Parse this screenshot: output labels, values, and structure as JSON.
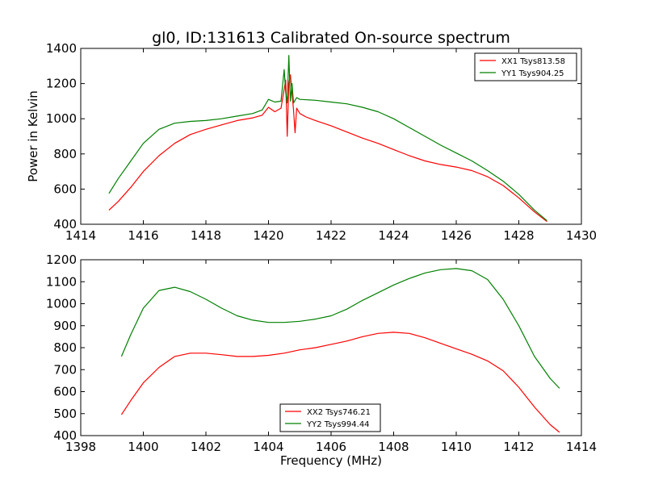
{
  "figure": {
    "title": "gl0, ID:131613 Calibrated On-source spectrum"
  },
  "chart_data": [
    {
      "type": "line",
      "title": "gl0, ID:131613 Calibrated On-source spectrum",
      "xlabel": "",
      "ylabel": "Power in Kelvin",
      "xlim": [
        1414,
        1430
      ],
      "ylim": [
        400,
        1400
      ],
      "xticks": [
        1414,
        1416,
        1418,
        1420,
        1422,
        1424,
        1426,
        1428,
        1430
      ],
      "yticks": [
        400,
        600,
        800,
        1000,
        1200,
        1400
      ],
      "grid": false,
      "legend": "top-right",
      "series": [
        {
          "name": "XX1 Tsys813.58",
          "color": "#ff0000",
          "x": [
            1414.9,
            1415.2,
            1415.6,
            1416.0,
            1416.5,
            1417.0,
            1417.5,
            1418.0,
            1418.5,
            1419.0,
            1419.5,
            1419.8,
            1420.0,
            1420.2,
            1420.4,
            1420.55,
            1420.6,
            1420.65,
            1420.7,
            1420.8,
            1420.85,
            1420.9,
            1421.0,
            1421.2,
            1421.5,
            1422.0,
            1422.5,
            1423.0,
            1423.5,
            1424.0,
            1424.5,
            1425.0,
            1425.5,
            1426.0,
            1426.5,
            1427.0,
            1427.5,
            1428.0,
            1428.5,
            1428.9
          ],
          "y": [
            480,
            530,
            610,
            700,
            790,
            860,
            910,
            940,
            965,
            990,
            1005,
            1020,
            1065,
            1040,
            1060,
            1220,
            900,
            1200,
            1250,
            1050,
            920,
            1060,
            1030,
            1010,
            990,
            960,
            925,
            890,
            860,
            825,
            790,
            760,
            740,
            725,
            705,
            670,
            620,
            550,
            470,
            415
          ]
        },
        {
          "name": "YY1 Tsys904.25",
          "color": "#008000",
          "x": [
            1414.9,
            1415.2,
            1415.6,
            1416.0,
            1416.5,
            1417.0,
            1417.5,
            1418.0,
            1418.5,
            1419.0,
            1419.5,
            1419.8,
            1420.0,
            1420.2,
            1420.4,
            1420.5,
            1420.55,
            1420.6,
            1420.65,
            1420.7,
            1420.75,
            1420.8,
            1420.9,
            1421.0,
            1421.5,
            1422.0,
            1422.5,
            1423.0,
            1423.5,
            1424.0,
            1424.5,
            1425.0,
            1425.5,
            1426.0,
            1426.5,
            1427.0,
            1427.5,
            1428.0,
            1428.5,
            1428.9
          ],
          "y": [
            575,
            660,
            760,
            860,
            940,
            975,
            985,
            990,
            1000,
            1015,
            1030,
            1050,
            1110,
            1095,
            1100,
            1280,
            1150,
            1090,
            1360,
            1100,
            1200,
            1090,
            1120,
            1110,
            1105,
            1095,
            1085,
            1065,
            1040,
            1000,
            950,
            900,
            850,
            805,
            760,
            705,
            645,
            570,
            480,
            420
          ]
        }
      ]
    },
    {
      "type": "line",
      "title": "",
      "xlabel": "Frequency (MHz)",
      "ylabel": "",
      "xlim": [
        1398,
        1414
      ],
      "ylim": [
        400,
        1200
      ],
      "xticks": [
        1398,
        1400,
        1402,
        1404,
        1406,
        1408,
        1410,
        1412,
        1414
      ],
      "yticks": [
        400,
        500,
        600,
        700,
        800,
        900,
        1000,
        1100,
        1200
      ],
      "grid": false,
      "legend": "bottom-center",
      "series": [
        {
          "name": "XX2 Tsys746.21",
          "color": "#ff0000",
          "x": [
            1399.3,
            1399.6,
            1400.0,
            1400.5,
            1401.0,
            1401.5,
            1402.0,
            1402.5,
            1403.0,
            1403.5,
            1404.0,
            1404.5,
            1405.0,
            1405.5,
            1406.0,
            1406.5,
            1407.0,
            1407.5,
            1408.0,
            1408.5,
            1409.0,
            1409.5,
            1410.0,
            1410.5,
            1411.0,
            1411.5,
            1412.0,
            1412.5,
            1413.0,
            1413.3
          ],
          "y": [
            495,
            560,
            640,
            710,
            760,
            775,
            775,
            768,
            760,
            760,
            765,
            775,
            790,
            800,
            815,
            830,
            850,
            865,
            870,
            865,
            845,
            820,
            795,
            770,
            740,
            695,
            620,
            530,
            450,
            415
          ]
        },
        {
          "name": "YY2 Tsys994.44",
          "color": "#008000",
          "x": [
            1399.3,
            1399.6,
            1400.0,
            1400.5,
            1401.0,
            1401.5,
            1402.0,
            1402.5,
            1403.0,
            1403.5,
            1404.0,
            1404.5,
            1405.0,
            1405.5,
            1406.0,
            1406.5,
            1407.0,
            1407.5,
            1408.0,
            1408.5,
            1409.0,
            1409.5,
            1410.0,
            1410.5,
            1411.0,
            1411.5,
            1412.0,
            1412.5,
            1413.0,
            1413.3
          ],
          "y": [
            760,
            860,
            980,
            1060,
            1075,
            1055,
            1020,
            980,
            945,
            925,
            915,
            915,
            920,
            930,
            945,
            975,
            1015,
            1050,
            1085,
            1115,
            1140,
            1155,
            1160,
            1150,
            1110,
            1020,
            900,
            760,
            660,
            615
          ]
        }
      ]
    }
  ]
}
